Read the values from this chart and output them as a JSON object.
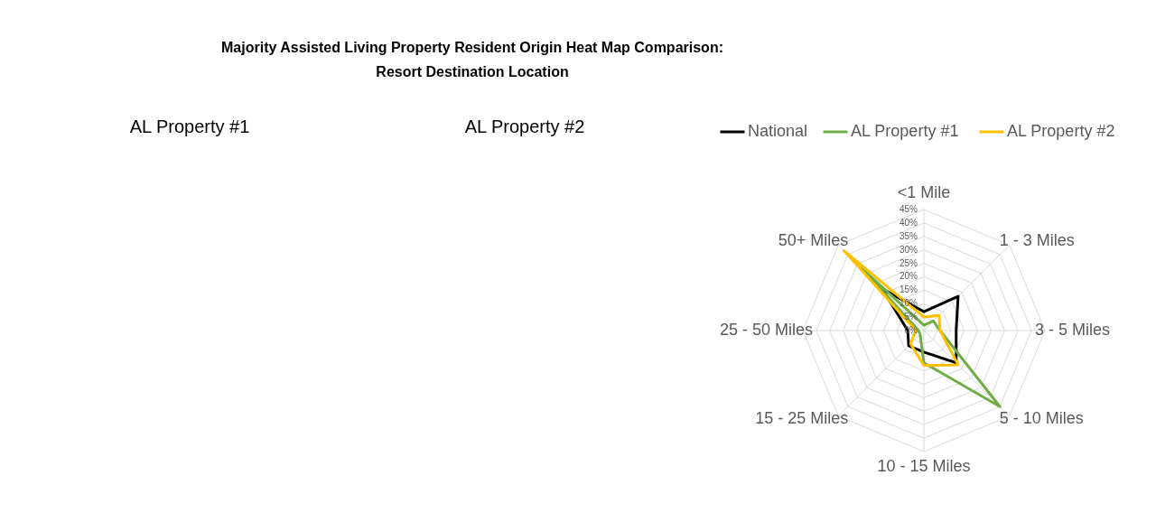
{
  "chart_data": {
    "type": "radar",
    "title": "Majority Assisted Living Property Resident Origin Heat Map Comparison:\nResort Destination Location",
    "annotations": [
      "AL Property #1",
      "AL Property #2"
    ],
    "categories": [
      "<1 Mile",
      "1 - 3 Miles",
      "3 - 5 Miles",
      "5 - 10 Miles",
      "10 - 15 Miles",
      "15 - 25 Miles",
      "25 - 50 Miles",
      "50+ Miles"
    ],
    "series": [
      {
        "name": "National",
        "color": "#000000",
        "values": [
          7,
          18,
          12,
          17,
          8,
          8,
          6,
          22
        ]
      },
      {
        "name": "AL Property  #1",
        "color": "#70ad47",
        "values": [
          2,
          5,
          6,
          40,
          12,
          2,
          2,
          33
        ]
      },
      {
        "name": "AL Property  #2",
        "color": "#ffc000",
        "values": [
          5,
          8,
          6,
          18,
          13,
          7,
          3,
          42
        ]
      }
    ],
    "ylim": [
      0,
      45
    ],
    "yticks": [
      {
        "value": 0,
        "label": "0%"
      },
      {
        "value": 5,
        "label": "5%"
      },
      {
        "value": 10,
        "label": "10%"
      },
      {
        "value": 15,
        "label": "15%"
      },
      {
        "value": 20,
        "label": "20%"
      },
      {
        "value": 25,
        "label": "25%"
      },
      {
        "value": 30,
        "label": "30%"
      },
      {
        "value": 35,
        "label": "35%"
      },
      {
        "value": 40,
        "label": "40%"
      },
      {
        "value": 45,
        "label": "45%"
      }
    ],
    "grid": true,
    "legend": "top"
  }
}
